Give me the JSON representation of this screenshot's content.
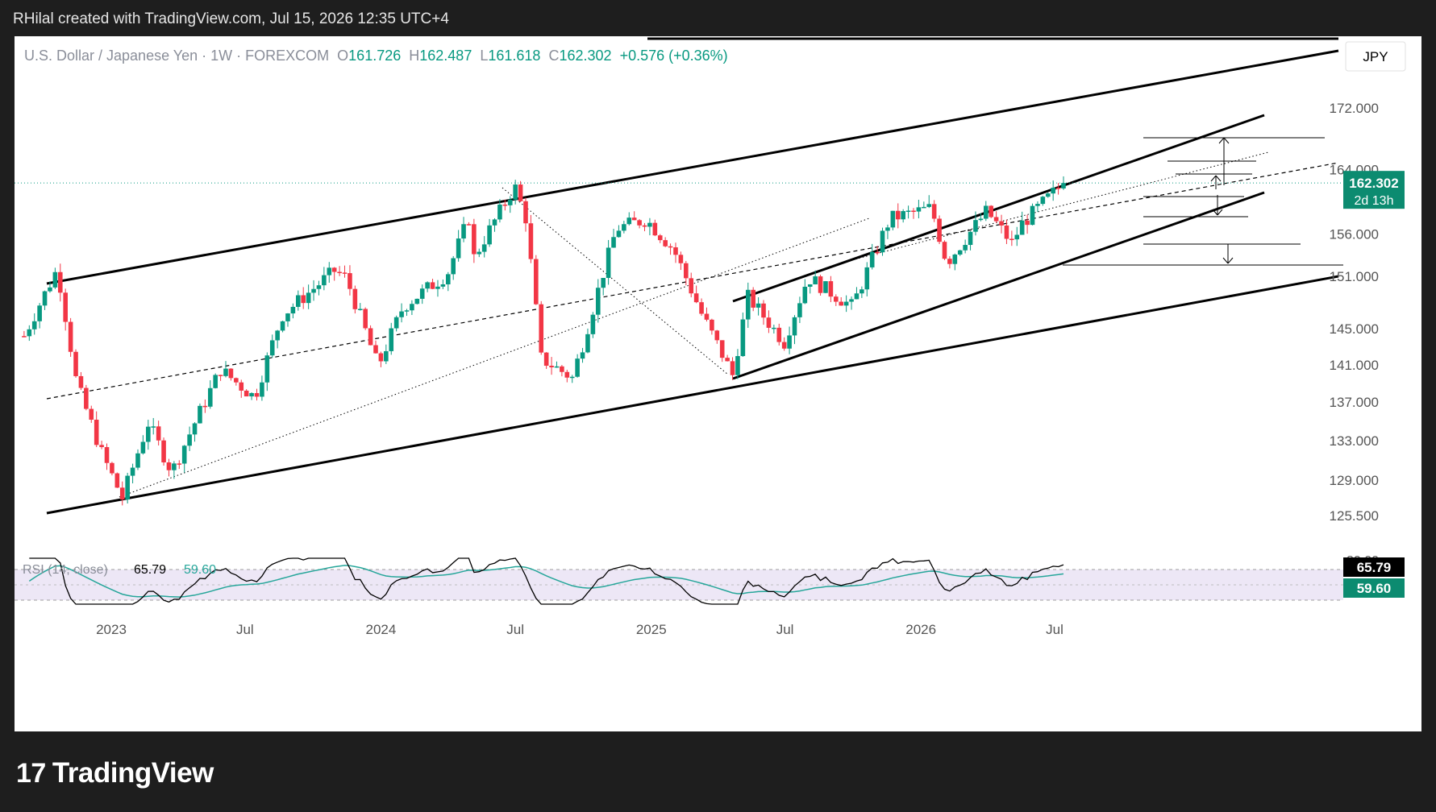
{
  "caption": "RHilal created with TradingView.com, Jul 15, 2026 12:35 UTC+4",
  "brand": "TradingView",
  "brand_mark": "17",
  "legend": {
    "symbol": "U.S. Dollar / Japanese Yen · 1W · FOREXCOM",
    "open_label": "O",
    "open": "161.726",
    "high_label": "H",
    "high": "162.487",
    "low_label": "L",
    "low": "161.618",
    "close_label": "C",
    "close": "162.302",
    "change": "+0.576 (+0.36%)"
  },
  "currency": "JPY",
  "price_badge": {
    "price": "162.302",
    "countdown": "2d 13h"
  },
  "rsi": {
    "label": "RSI (14, close)",
    "value": "65.79",
    "ma": "59.60"
  },
  "colors": {
    "up": "#089981",
    "down": "#f23645",
    "badge": "#0c8b70",
    "rsi_line": "#000000",
    "rsi_ma": "#26a69a",
    "rsi_band": "#ede7f6"
  },
  "chart_data": {
    "type": "candlestick",
    "title": "U.S. Dollar / Japanese Yen · 1W · FOREXCOM",
    "y_ticks": [
      172.0,
      164.0,
      156.0,
      151.0,
      145.0,
      141.0,
      137.0,
      133.0,
      129.0,
      125.5
    ],
    "y_tick_labels": [
      "172.000",
      "164.000",
      "156.000",
      "151.000",
      "145.000",
      "141.000",
      "137.000",
      "133.000",
      "129.000",
      "125.500"
    ],
    "ylim": [
      122,
      180
    ],
    "log_scale": true,
    "x_ticks": [
      {
        "label": "2023",
        "date": "2023-01-01"
      },
      {
        "label": "Jul",
        "date": "2023-07-01"
      },
      {
        "label": "2024",
        "date": "2024-01-01"
      },
      {
        "label": "Jul",
        "date": "2024-07-01"
      },
      {
        "label": "2025",
        "date": "2025-01-01"
      },
      {
        "label": "Jul",
        "date": "2025-07-01"
      },
      {
        "label": "2026",
        "date": "2026-01-01"
      },
      {
        "label": "Jul",
        "date": "2026-07-01"
      }
    ],
    "price_path": [
      [
        "2022-09-01",
        143.5
      ],
      [
        "2022-10-20",
        151.9
      ],
      [
        "2022-11-15",
        139.0
      ],
      [
        "2022-12-20",
        131.5
      ],
      [
        "2023-01-16",
        127.2
      ],
      [
        "2023-02-20",
        134.8
      ],
      [
        "2023-03-24",
        129.8
      ],
      [
        "2023-05-29",
        140.5
      ],
      [
        "2023-07-14",
        137.5
      ],
      [
        "2023-08-20",
        146.5
      ],
      [
        "2023-10-31",
        151.7
      ],
      [
        "2023-11-15",
        150.8
      ],
      [
        "2023-12-28",
        140.8
      ],
      [
        "2024-01-31",
        147.5
      ],
      [
        "2024-03-31",
        151.3
      ],
      [
        "2024-04-29",
        158.0
      ],
      [
        "2024-05-06",
        153.2
      ],
      [
        "2024-06-30",
        161.9
      ],
      [
        "2024-07-15",
        158.0
      ],
      [
        "2024-08-05",
        141.7
      ],
      [
        "2024-09-16",
        139.6
      ],
      [
        "2024-10-01",
        143.5
      ],
      [
        "2024-11-15",
        156.7
      ],
      [
        "2024-12-25",
        157.8
      ],
      [
        "2025-01-31",
        154.2
      ],
      [
        "2025-03-11",
        146.5
      ],
      [
        "2025-04-21",
        139.9
      ],
      [
        "2025-05-12",
        148.6
      ],
      [
        "2025-06-30",
        143.5
      ],
      [
        "2025-08-01",
        150.9
      ],
      [
        "2025-09-30",
        147.5
      ],
      [
        "2025-11-20",
        157.9
      ],
      [
        "2026-01-15",
        159.2
      ],
      [
        "2026-02-05",
        152.6
      ],
      [
        "2026-03-31",
        158.8
      ],
      [
        "2026-05-05",
        154.8
      ],
      [
        "2026-05-15",
        157.0
      ],
      [
        "2026-07-13",
        162.3
      ]
    ]
  }
}
